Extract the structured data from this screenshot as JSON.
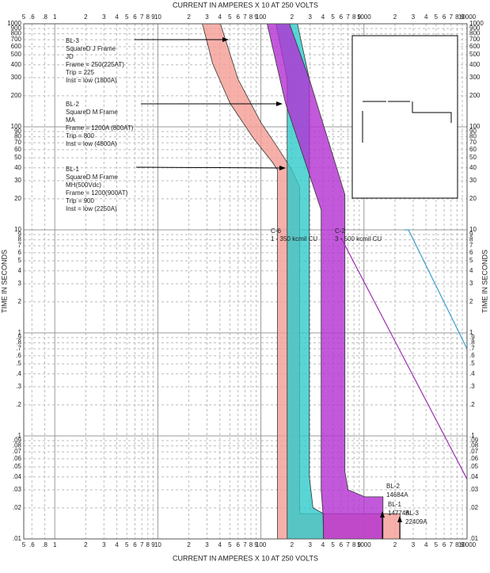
{
  "chart_data": {
    "type": "tcc",
    "x_label": "CURRENT IN AMPERES X 10 AT 250 VOLTS",
    "y_label": "TIME IN SECONDS",
    "log_x": true,
    "log_y": true,
    "grid": true,
    "xlim": [
      0.5,
      10000
    ],
    "ylim": [
      0.01,
      1000
    ],
    "xticks": [
      {
        "value": 0.5,
        "label": "5"
      },
      {
        "value": 0.6,
        "label": ".6"
      },
      {
        "value": 0.8,
        "label": ".8"
      },
      1,
      2,
      3,
      4,
      5,
      6,
      7,
      8,
      9,
      10,
      {
        "value": 20,
        "label": "2"
      },
      {
        "value": 30,
        "label": "3"
      },
      {
        "value": 40,
        "label": "4"
      },
      {
        "value": 50,
        "label": "5"
      },
      {
        "value": 60,
        "label": "6"
      },
      {
        "value": 70,
        "label": "7"
      },
      {
        "value": 80,
        "label": "8"
      },
      {
        "value": 90,
        "label": "9"
      },
      100,
      {
        "value": 200,
        "label": "2"
      },
      {
        "value": 300,
        "label": "3"
      },
      {
        "value": 400,
        "label": "4"
      },
      {
        "value": 500,
        "label": "5"
      },
      {
        "value": 600,
        "label": "6"
      },
      {
        "value": 700,
        "label": "7"
      },
      {
        "value": 800,
        "label": "8"
      },
      {
        "value": 900,
        "label": "9"
      },
      1000,
      {
        "value": 2000,
        "label": "2"
      },
      {
        "value": 3000,
        "label": "3"
      },
      {
        "value": 4000,
        "label": "4"
      },
      {
        "value": 5000,
        "label": "5"
      },
      {
        "value": 6000,
        "label": "6"
      },
      {
        "value": 7000,
        "label": "7"
      },
      {
        "value": 8000,
        "label": "8"
      },
      {
        "value": 9000,
        "label": "9"
      },
      10000
    ],
    "yticks": [
      1000,
      900,
      800,
      700,
      600,
      500,
      400,
      300,
      200,
      100,
      90,
      80,
      70,
      60,
      50,
      40,
      30,
      20,
      10,
      9,
      8,
      7,
      6,
      5,
      4,
      3,
      2,
      1,
      {
        "value": 0.9,
        "label": ".9"
      },
      {
        "value": 0.8,
        "label": ".8"
      },
      {
        "value": 0.7,
        "label": ".7"
      },
      {
        "value": 0.6,
        "label": ".6"
      },
      {
        "value": 0.5,
        "label": ".5"
      },
      {
        "value": 0.4,
        "label": ".4"
      },
      {
        "value": 0.3,
        "label": ".3"
      },
      {
        "value": 0.2,
        "label": ".2"
      },
      {
        "value": 0.1,
        "label": ".1"
      },
      {
        "value": 0.09,
        "label": ".09"
      },
      {
        "value": 0.08,
        "label": ".08"
      },
      {
        "value": 0.07,
        "label": ".07"
      },
      {
        "value": 0.06,
        "label": ".06"
      },
      {
        "value": 0.05,
        "label": ".05"
      },
      {
        "value": 0.04,
        "label": ".04"
      },
      {
        "value": 0.03,
        "label": ".03"
      },
      {
        "value": 0.02,
        "label": ".02"
      },
      {
        "value": 0.01,
        "label": ".01"
      }
    ],
    "series": [
      {
        "style": "band",
        "color": "#f49c94",
        "x": [
          27,
          34,
          50,
          85,
          130,
          145,
          145,
          2241,
          2241,
          238,
          238,
          200,
          150,
          100,
          60,
          40.5
        ],
        "y": [
          1000,
          412,
          170,
          77,
          45,
          38,
          0.01,
          0.01,
          0.0176,
          0.0176,
          26,
          38,
          60,
          110,
          290,
          1000
        ]
      },
      {
        "style": "band",
        "color": "#2fcaca",
        "x": [
          140,
          180,
          180,
          405,
          405,
          320,
          295,
          295,
          226
        ],
        "y": [
          1000,
          290,
          0.01,
          0.01,
          0.0176,
          0.02,
          0.04,
          290,
          1000
        ]
      },
      {
        "style": "band",
        "color": "#b32fd2",
        "x": [
          115,
          173,
          384,
          384,
          400,
          405,
          1530,
          1530,
          1018,
          700,
          653,
          653,
          295,
          189
        ],
        "y": [
          1000,
          170,
          15.6,
          0.03,
          0.0176,
          0.01,
          0.01,
          0.0256,
          0.0256,
          0.03,
          0.045,
          22,
          290,
          1000
        ]
      },
      {
        "style": "line",
        "color": "#3a9ec8",
        "x": [
          2467,
          2700,
          10000
        ],
        "y": [
          10,
          10,
          0.7
        ]
      },
      {
        "style": "line",
        "color": "#9a30b0",
        "x": [
          598,
          10000
        ],
        "y": [
          8.4,
          0.038
        ]
      }
    ],
    "device_notes": [
      {
        "lines": [
          "BL-3",
          "SquareD J Frame",
          "JD",
          "Frame = 250(225AT)",
          "Trip = 225",
          "Inst = low (1800A)"
        ]
      },
      {
        "lines": [
          "BL-2",
          "SquareD M Frame",
          "MA",
          "Frame = 1200A (800AT)",
          "Trip = 800",
          "Inst = low (4800A)"
        ]
      },
      {
        "lines": [
          "BL-1",
          "SquareD M Frame",
          "MH(500Vdc)",
          "Frame = 1200(900AT)",
          "Trip = 900",
          "Inst = low (2250A)"
        ]
      }
    ],
    "cable_labels": [
      {
        "name": "C-6",
        "text": "1 - 350 kcmil CU"
      },
      {
        "name": "C-2",
        "text": "3 - 500 kcmil CU"
      }
    ],
    "inst_labels": [
      {
        "name": "BL-2",
        "current": "14684A"
      },
      {
        "name": "BL-1",
        "current": "14774A"
      },
      {
        "name": "BL-3",
        "current": "22409A"
      }
    ]
  }
}
